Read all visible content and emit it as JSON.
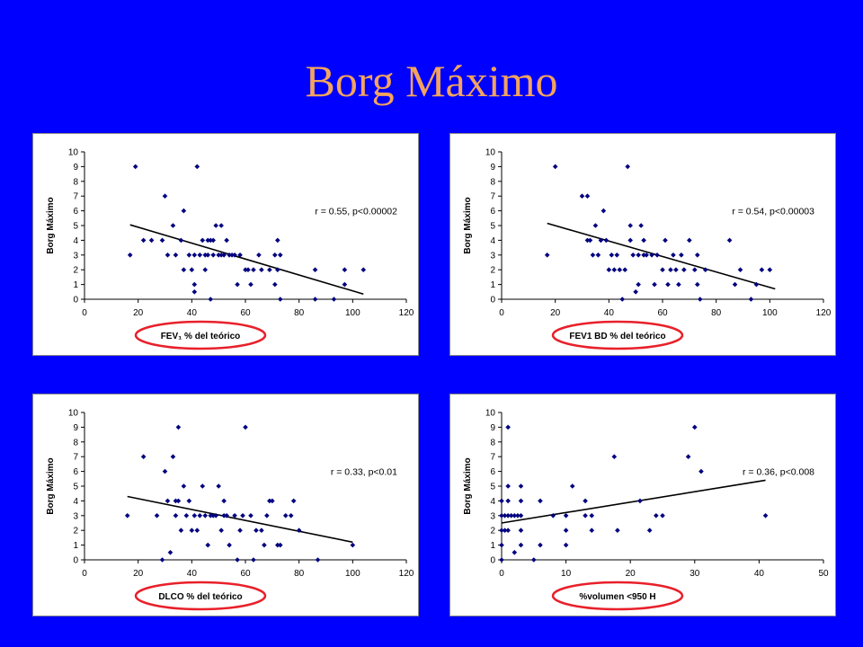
{
  "title": "Borg Máximo",
  "colors": {
    "background": "#0000ff",
    "title": "#f2a35e",
    "marker": "#000080",
    "highlight_ellipse": "#e8202a"
  },
  "chart_data": [
    {
      "type": "scatter",
      "xlabel": "FEV₁ % del teórico",
      "ylabel": "Borg Máximo",
      "annotation": "r = 0.55,  p<0.00002",
      "xlim": [
        0,
        120
      ],
      "ylim": [
        0,
        10
      ],
      "xticks": [
        0,
        20,
        40,
        60,
        80,
        100,
        120
      ],
      "yticks": [
        0,
        1,
        2,
        3,
        4,
        5,
        6,
        7,
        8,
        9,
        10
      ],
      "trendline": [
        [
          17,
          5.05
        ],
        [
          104,
          0.35
        ]
      ],
      "points": [
        [
          17,
          3
        ],
        [
          19,
          9
        ],
        [
          22,
          4
        ],
        [
          25,
          4
        ],
        [
          29,
          4
        ],
        [
          30,
          7
        ],
        [
          31,
          3
        ],
        [
          33,
          5
        ],
        [
          34,
          3
        ],
        [
          36,
          4
        ],
        [
          37,
          6
        ],
        [
          37,
          2
        ],
        [
          39,
          3
        ],
        [
          40,
          2
        ],
        [
          41,
          3
        ],
        [
          41,
          0.5
        ],
        [
          41,
          1
        ],
        [
          42,
          9
        ],
        [
          43,
          3
        ],
        [
          44,
          4
        ],
        [
          45,
          2
        ],
        [
          45,
          3
        ],
        [
          46,
          4
        ],
        [
          46,
          3
        ],
        [
          47,
          4
        ],
        [
          47,
          0
        ],
        [
          48,
          3
        ],
        [
          48,
          4
        ],
        [
          49,
          5
        ],
        [
          50,
          3
        ],
        [
          51,
          3
        ],
        [
          51,
          5
        ],
        [
          52,
          3
        ],
        [
          53,
          4
        ],
        [
          54,
          3
        ],
        [
          55,
          3
        ],
        [
          56,
          3
        ],
        [
          57,
          1
        ],
        [
          58,
          3
        ],
        [
          60,
          2
        ],
        [
          61,
          2
        ],
        [
          62,
          1
        ],
        [
          63,
          2
        ],
        [
          65,
          3
        ],
        [
          66,
          2
        ],
        [
          69,
          2
        ],
        [
          71,
          3
        ],
        [
          71,
          1
        ],
        [
          72,
          2
        ],
        [
          72,
          4
        ],
        [
          73,
          3
        ],
        [
          73,
          0
        ],
        [
          86,
          2
        ],
        [
          86,
          0
        ],
        [
          93,
          0
        ],
        [
          97,
          1
        ],
        [
          97,
          2
        ],
        [
          104,
          2
        ]
      ]
    },
    {
      "type": "scatter",
      "xlabel": "FEV1 BD % del teórico",
      "ylabel": "Borg Máximo",
      "annotation": "r = 0.54,  p<0.00003",
      "xlim": [
        0,
        120
      ],
      "ylim": [
        0,
        10
      ],
      "xticks": [
        0,
        20,
        40,
        60,
        80,
        100,
        120
      ],
      "yticks": [
        0,
        1,
        2,
        3,
        4,
        5,
        6,
        7,
        8,
        9,
        10
      ],
      "trendline": [
        [
          17,
          5.15
        ],
        [
          102,
          0.7
        ]
      ],
      "points": [
        [
          17,
          3
        ],
        [
          20,
          9
        ],
        [
          30,
          7
        ],
        [
          32,
          4
        ],
        [
          32,
          7
        ],
        [
          33,
          4
        ],
        [
          34,
          3
        ],
        [
          35,
          5
        ],
        [
          36,
          3
        ],
        [
          37,
          4
        ],
        [
          38,
          6
        ],
        [
          39,
          4
        ],
        [
          40,
          2
        ],
        [
          41,
          3
        ],
        [
          42,
          2
        ],
        [
          43,
          3
        ],
        [
          44,
          2
        ],
        [
          45,
          0
        ],
        [
          46,
          2
        ],
        [
          47,
          9
        ],
        [
          48,
          5
        ],
        [
          48,
          4
        ],
        [
          49,
          3
        ],
        [
          50,
          0.5
        ],
        [
          51,
          1
        ],
        [
          51,
          3
        ],
        [
          52,
          5
        ],
        [
          53,
          3
        ],
        [
          53,
          4
        ],
        [
          54,
          3
        ],
        [
          56,
          3
        ],
        [
          57,
          1
        ],
        [
          58,
          3
        ],
        [
          60,
          2
        ],
        [
          61,
          4
        ],
        [
          62,
          1
        ],
        [
          63,
          2
        ],
        [
          64,
          3
        ],
        [
          65,
          2
        ],
        [
          66,
          1
        ],
        [
          67,
          3
        ],
        [
          68,
          2
        ],
        [
          70,
          4
        ],
        [
          72,
          2
        ],
        [
          73,
          3
        ],
        [
          73,
          1
        ],
        [
          74,
          0
        ],
        [
          76,
          2
        ],
        [
          85,
          4
        ],
        [
          87,
          1
        ],
        [
          89,
          2
        ],
        [
          93,
          0
        ],
        [
          95,
          1
        ],
        [
          97,
          2
        ],
        [
          100,
          2
        ]
      ]
    },
    {
      "type": "scatter",
      "xlabel": "DLCO % del teórico",
      "ylabel": "Borg Máximo",
      "annotation": "r = 0.33,  p<0.01",
      "xlim": [
        0,
        120
      ],
      "ylim": [
        0,
        10
      ],
      "xticks": [
        0,
        20,
        40,
        60,
        80,
        100,
        120
      ],
      "yticks": [
        0,
        1,
        2,
        3,
        4,
        5,
        6,
        7,
        8,
        9,
        10
      ],
      "trendline": [
        [
          16,
          4.3
        ],
        [
          100,
          1.2
        ]
      ],
      "points": [
        [
          16,
          3
        ],
        [
          22,
          7
        ],
        [
          27,
          3
        ],
        [
          29,
          0
        ],
        [
          30,
          6
        ],
        [
          31,
          4
        ],
        [
          32,
          0.5
        ],
        [
          33,
          7
        ],
        [
          34,
          4
        ],
        [
          34,
          3
        ],
        [
          35,
          9
        ],
        [
          35,
          4
        ],
        [
          36,
          2
        ],
        [
          37,
          5
        ],
        [
          38,
          3
        ],
        [
          39,
          4
        ],
        [
          40,
          2
        ],
        [
          41,
          3
        ],
        [
          42,
          2
        ],
        [
          43,
          3
        ],
        [
          44,
          5
        ],
        [
          45,
          3
        ],
        [
          46,
          1
        ],
        [
          47,
          3
        ],
        [
          48,
          3
        ],
        [
          49,
          3
        ],
        [
          50,
          5
        ],
        [
          51,
          2
        ],
        [
          52,
          3
        ],
        [
          52,
          4
        ],
        [
          53,
          3
        ],
        [
          54,
          1
        ],
        [
          56,
          3
        ],
        [
          57,
          0
        ],
        [
          58,
          2
        ],
        [
          59,
          3
        ],
        [
          60,
          9
        ],
        [
          62,
          3
        ],
        [
          63,
          0
        ],
        [
          64,
          2
        ],
        [
          66,
          2
        ],
        [
          67,
          1
        ],
        [
          68,
          3
        ],
        [
          69,
          4
        ],
        [
          70,
          4
        ],
        [
          72,
          1
        ],
        [
          73,
          1
        ],
        [
          75,
          3
        ],
        [
          77,
          3
        ],
        [
          78,
          4
        ],
        [
          80,
          2
        ],
        [
          87,
          0
        ],
        [
          100,
          1
        ]
      ]
    },
    {
      "type": "scatter",
      "xlabel": "%volumen <950 H",
      "ylabel": "Borg Máximo",
      "annotation": "r = 0.36,  p<0.008",
      "xlim": [
        0,
        50
      ],
      "ylim": [
        0,
        10
      ],
      "xticks": [
        0,
        10,
        20,
        30,
        40,
        50
      ],
      "yticks": [
        0,
        1,
        2,
        3,
        4,
        5,
        6,
        7,
        8,
        9,
        10
      ],
      "trendline": [
        [
          0,
          2.5
        ],
        [
          41,
          5.4
        ]
      ],
      "points": [
        [
          0,
          0
        ],
        [
          0,
          1
        ],
        [
          0,
          2
        ],
        [
          0,
          3
        ],
        [
          0,
          4
        ],
        [
          0.5,
          2
        ],
        [
          0.5,
          3
        ],
        [
          1,
          4
        ],
        [
          1,
          9
        ],
        [
          1,
          5
        ],
        [
          1,
          3
        ],
        [
          1,
          2
        ],
        [
          1.5,
          3
        ],
        [
          2,
          3
        ],
        [
          2,
          0.5
        ],
        [
          2.5,
          3
        ],
        [
          3,
          5
        ],
        [
          3,
          4
        ],
        [
          3,
          2
        ],
        [
          3,
          1
        ],
        [
          3,
          3
        ],
        [
          5,
          0
        ],
        [
          6,
          1
        ],
        [
          6,
          4
        ],
        [
          8,
          3
        ],
        [
          10,
          1
        ],
        [
          10,
          3
        ],
        [
          10,
          2
        ],
        [
          11,
          5
        ],
        [
          13,
          3
        ],
        [
          13,
          4
        ],
        [
          14,
          3
        ],
        [
          14,
          2
        ],
        [
          17.5,
          7
        ],
        [
          18,
          2
        ],
        [
          21.5,
          4
        ],
        [
          23,
          2
        ],
        [
          24,
          3
        ],
        [
          25,
          3
        ],
        [
          29,
          7
        ],
        [
          30,
          9
        ],
        [
          31,
          6
        ],
        [
          41,
          3
        ]
      ]
    }
  ]
}
